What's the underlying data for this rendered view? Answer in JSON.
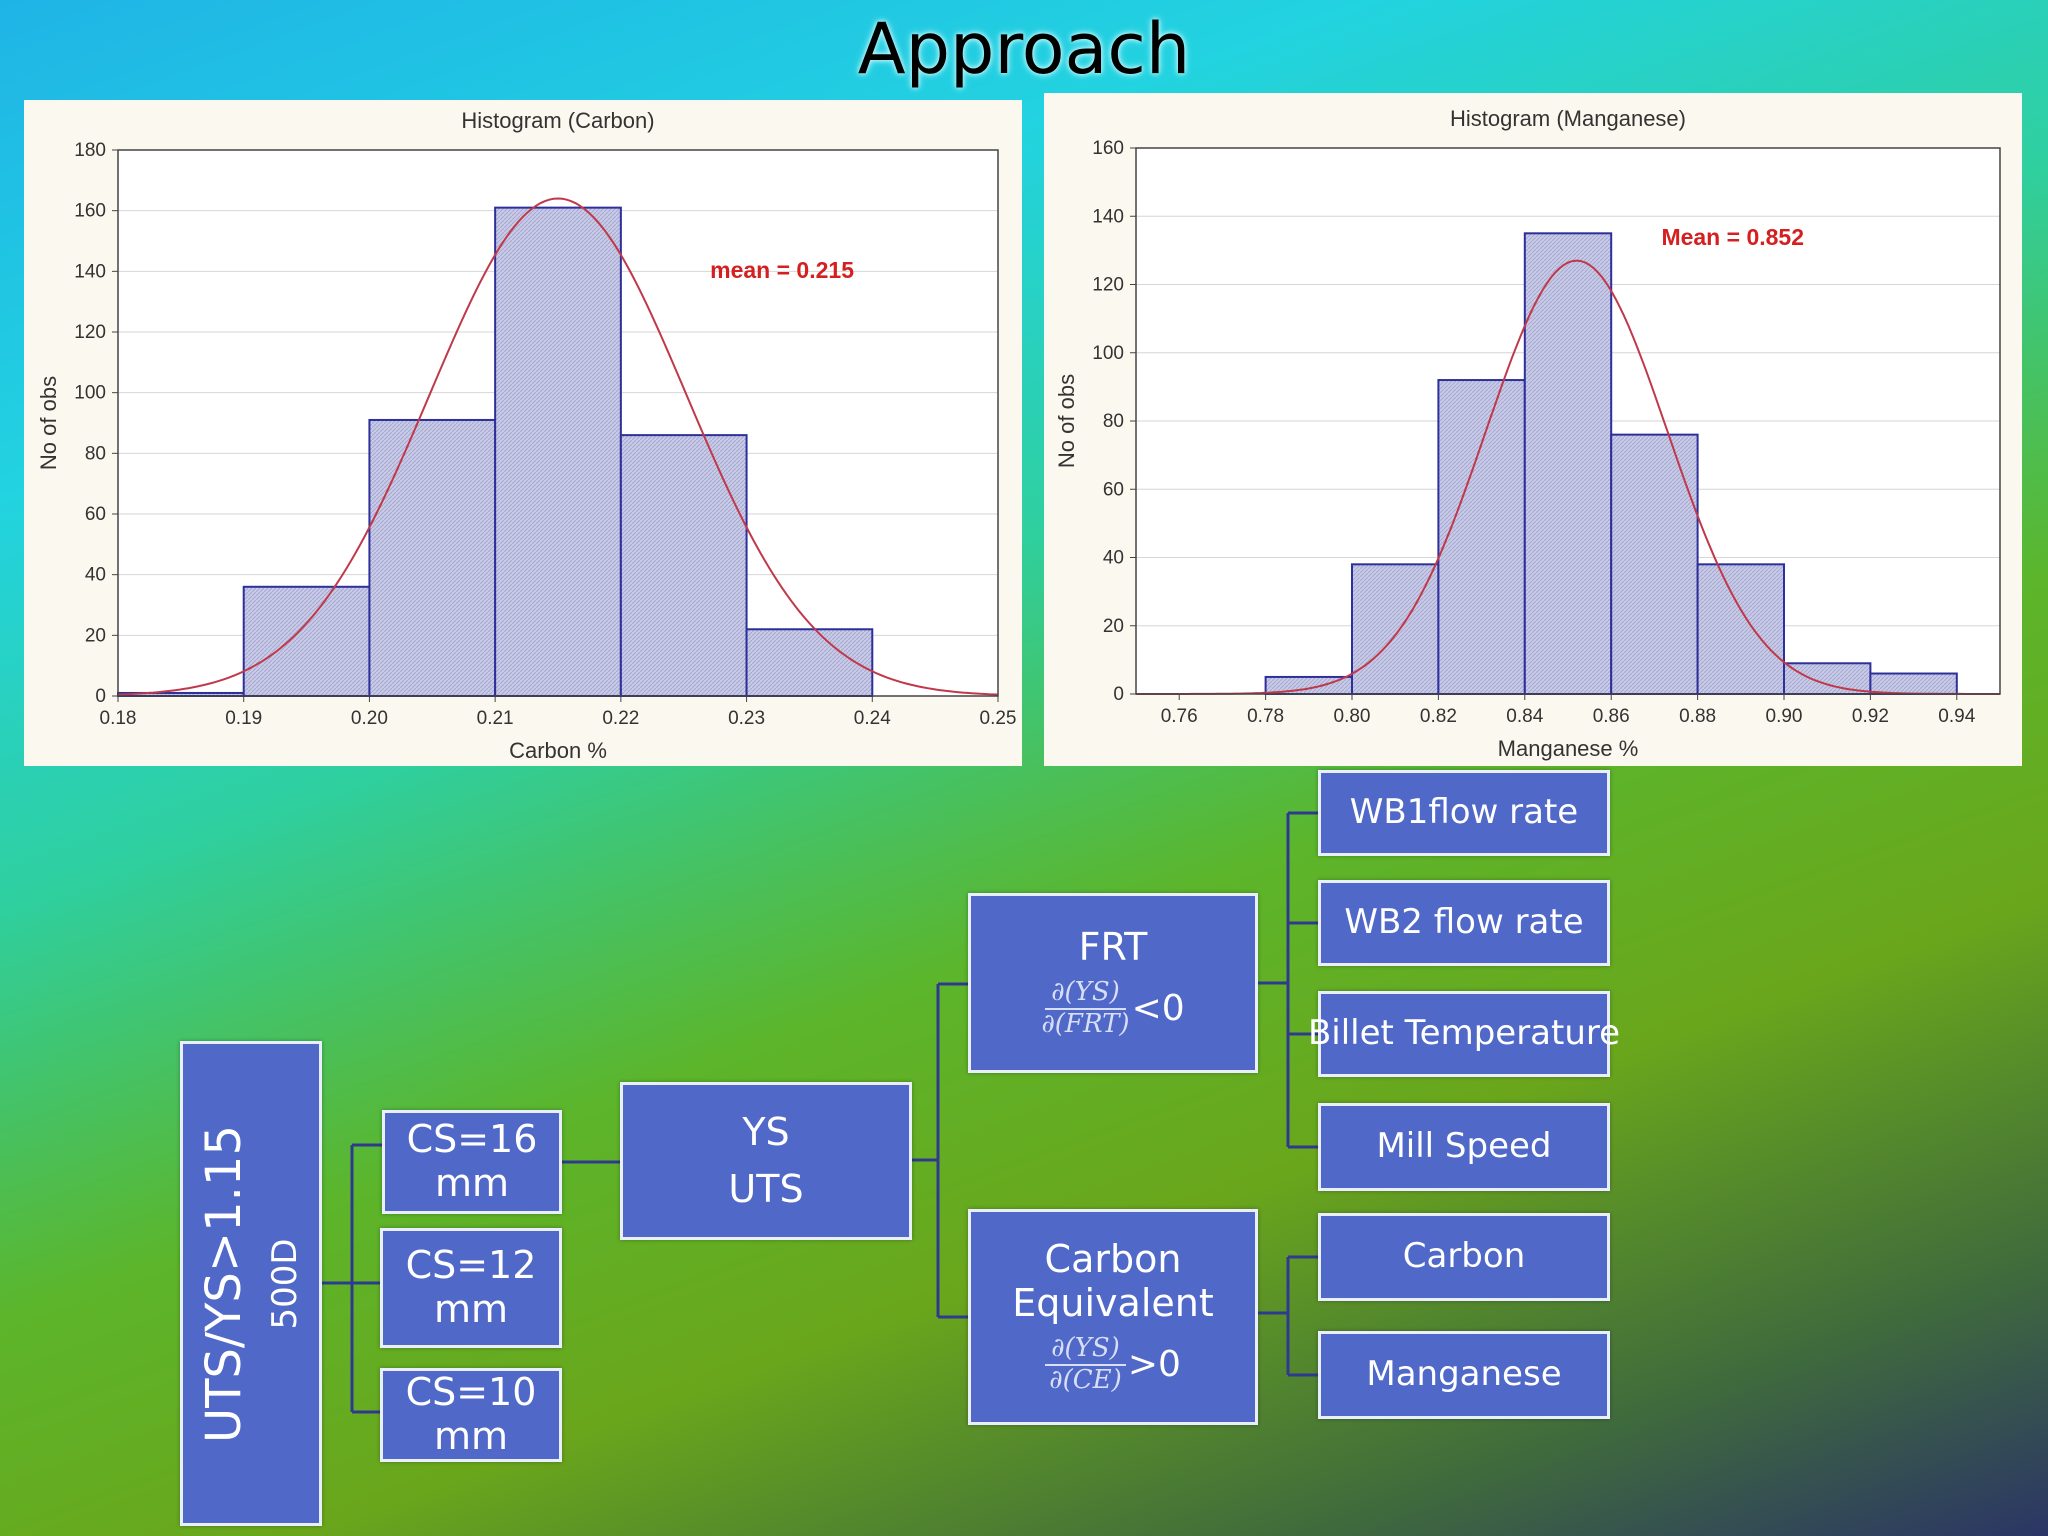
{
  "slide": {
    "title": "Approach"
  },
  "chart_data": [
    {
      "type": "bar",
      "title": "Histogram (Carbon)",
      "xlabel": "Carbon %",
      "ylabel": "No of obs",
      "xlim": [
        0.18,
        0.25
      ],
      "ylim": [
        0,
        180
      ],
      "x_ticks": [
        "0.18",
        "0.19",
        "0.20",
        "0.21",
        "0.22",
        "0.23",
        "0.24",
        "0.25"
      ],
      "y_ticks": [
        "0",
        "20",
        "40",
        "60",
        "80",
        "100",
        "120",
        "140",
        "160",
        "180"
      ],
      "bins": [
        [
          0.18,
          0.19
        ],
        [
          0.19,
          0.2
        ],
        [
          0.2,
          0.21
        ],
        [
          0.21,
          0.22
        ],
        [
          0.22,
          0.23
        ],
        [
          0.23,
          0.24
        ]
      ],
      "values": [
        1,
        36,
        91,
        161,
        86,
        22
      ],
      "fit": {
        "mean": 0.215,
        "sd": 0.0102,
        "peak": 164
      },
      "annotation": "mean = 0.215",
      "grid": true,
      "bar_color": "#c9cbe6",
      "bar_edge": "#2d2f9a",
      "curve_color": "#c0394a",
      "annotation_color": "#d42020"
    },
    {
      "type": "bar",
      "title": "Histogram (Manganese)",
      "xlabel": "Manganese %",
      "ylabel": "No of obs",
      "xlim": [
        0.75,
        0.95
      ],
      "ylim": [
        0,
        160
      ],
      "x_ticks": [
        "0.76",
        "0.78",
        "0.80",
        "0.82",
        "0.84",
        "0.86",
        "0.88",
        "0.90",
        "0.92",
        "0.94"
      ],
      "y_ticks": [
        "0",
        "20",
        "40",
        "60",
        "80",
        "100",
        "120",
        "140",
        "160"
      ],
      "bins": [
        [
          0.78,
          0.8
        ],
        [
          0.8,
          0.82
        ],
        [
          0.82,
          0.84
        ],
        [
          0.84,
          0.86
        ],
        [
          0.86,
          0.88
        ],
        [
          0.88,
          0.9
        ],
        [
          0.9,
          0.92
        ],
        [
          0.92,
          0.94
        ]
      ],
      "values": [
        5,
        38,
        92,
        135,
        76,
        38,
        9,
        6
      ],
      "fit": {
        "mean": 0.852,
        "sd": 0.021,
        "peak": 127
      },
      "annotation": "Mean = 0.852",
      "grid": true,
      "bar_color": "#c9cbe6",
      "bar_edge": "#2d2f9a",
      "curve_color": "#c0394a",
      "annotation_color": "#d42020"
    }
  ],
  "tree": {
    "root": {
      "line1": "UTS/YS>1.15",
      "line2": "500D"
    },
    "cs": [
      {
        "l1": "CS=16",
        "l2": "mm"
      },
      {
        "l1": "CS=12",
        "l2": "mm"
      },
      {
        "l1": "CS=10",
        "l2": "mm"
      }
    ],
    "ys_uts": {
      "l1": "YS",
      "l2": "UTS"
    },
    "frt": {
      "label": "FRT",
      "num": "∂(YS)",
      "den": "∂(FRT)",
      "op": "<0"
    },
    "ce": {
      "l1": "Carbon",
      "l2": "Equivalent",
      "num": "∂(YS)",
      "den": "∂(CE)",
      "op": ">0"
    },
    "frt_children": [
      "WB1flow rate",
      "WB2 flow rate",
      "Billet Temperature",
      "Mill Speed"
    ],
    "ce_children": [
      "Carbon",
      "Manganese"
    ]
  }
}
